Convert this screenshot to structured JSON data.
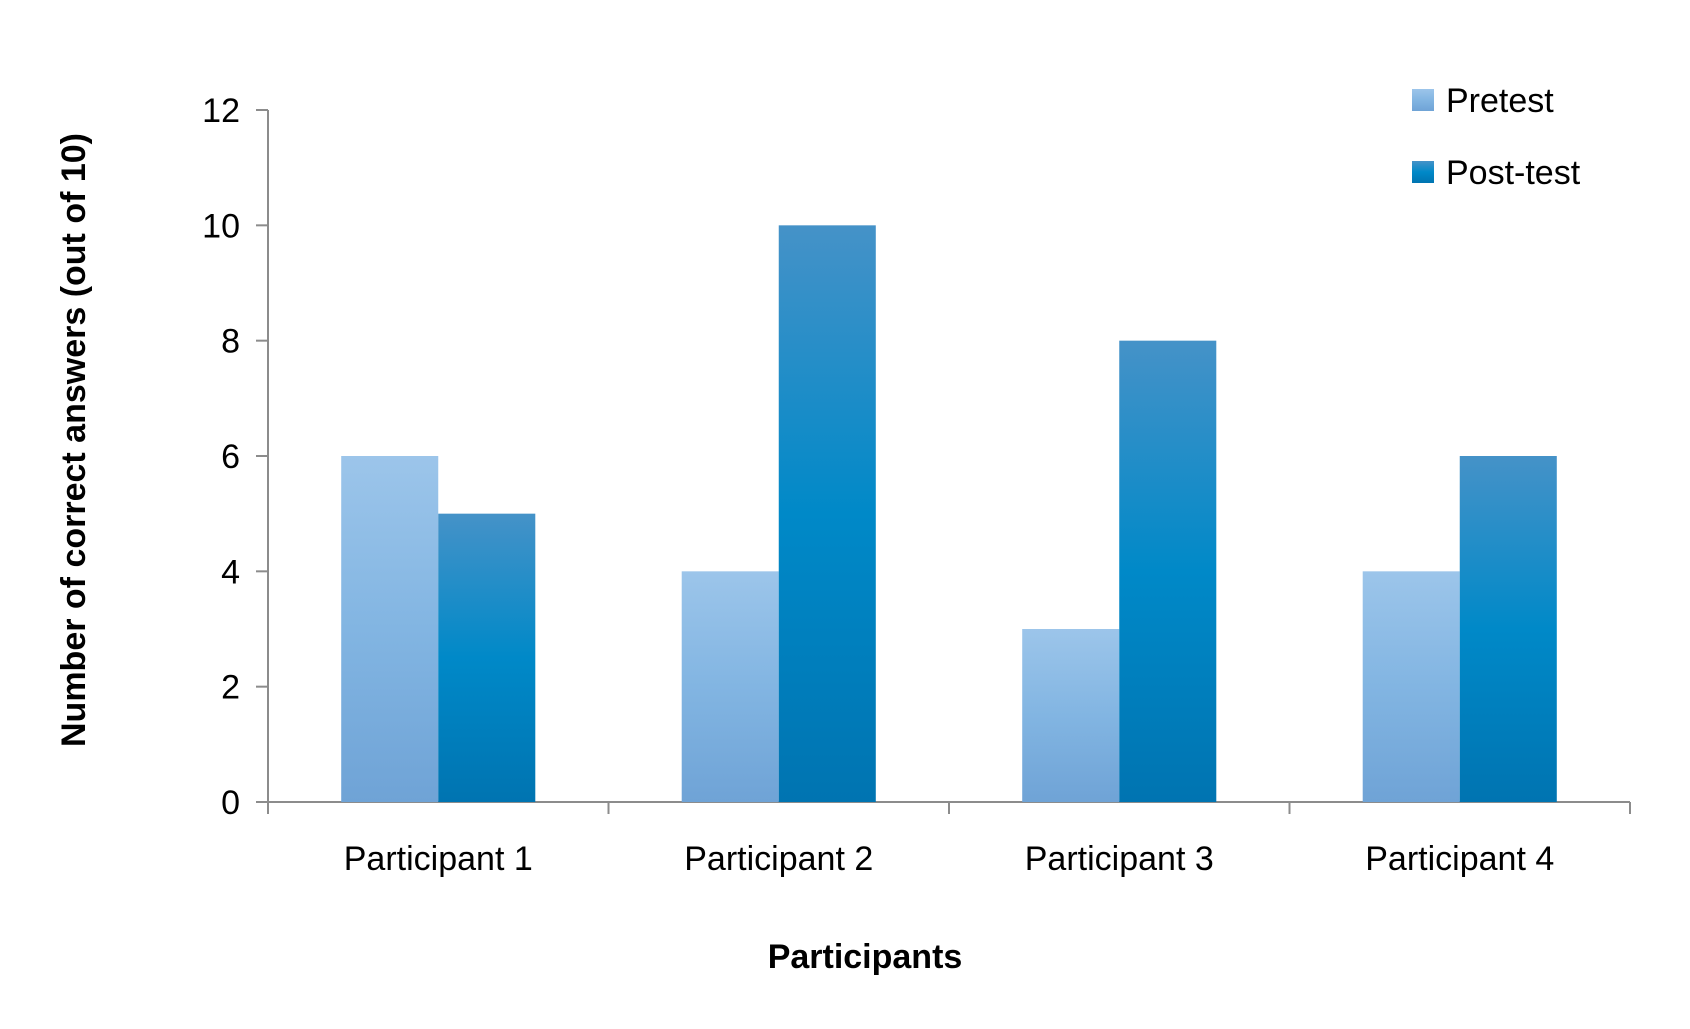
{
  "chart_data": {
    "type": "bar",
    "title": "",
    "xlabel": "Participants",
    "ylabel": "Number of correct answers (out of 10)",
    "categories": [
      "Participant 1",
      "Participant 2",
      "Participant 3",
      "Participant 4"
    ],
    "series": [
      {
        "name": "Pretest",
        "values": [
          6,
          4,
          3,
          4
        ],
        "color": "#8dbde6"
      },
      {
        "name": "Post-test",
        "values": [
          5,
          10,
          8,
          6
        ],
        "color": "#0a86c4"
      }
    ],
    "ylim": [
      0,
      12
    ],
    "yticks": [
      "0",
      "2",
      "4",
      "6",
      "8",
      "10",
      "12"
    ],
    "grid": false,
    "legend_position": "top-right"
  }
}
